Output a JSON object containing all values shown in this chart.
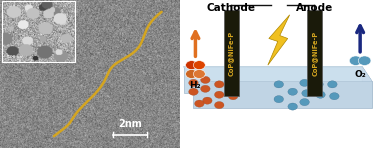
{
  "left_panel": {
    "line_color": "#D4A520",
    "line_width": 1.8,
    "scale_bar_text": "2nm"
  },
  "right_panel": {
    "cathode_label": "Cathode",
    "anode_label": "Anode",
    "electrode_color": "#1a1a0a",
    "electrode_text": "CoP@NiFe-P",
    "electrode_text_color": "#D4A520",
    "h2_label": "H₂",
    "o2_label": "O₂",
    "particle_color_orange": "#cc5522",
    "particle_color_blue": "#5599bb",
    "lightning_color": "#f0c020",
    "wire_color": "#111111",
    "arrow_orange": "#e07020",
    "arrow_blue": "#1a2880",
    "tray_top_color": "#d8e8f2",
    "tray_side_color": "#c0d4e4",
    "tray_front_color": "#b8cede",
    "water_inner_color": "#ccdde8"
  }
}
